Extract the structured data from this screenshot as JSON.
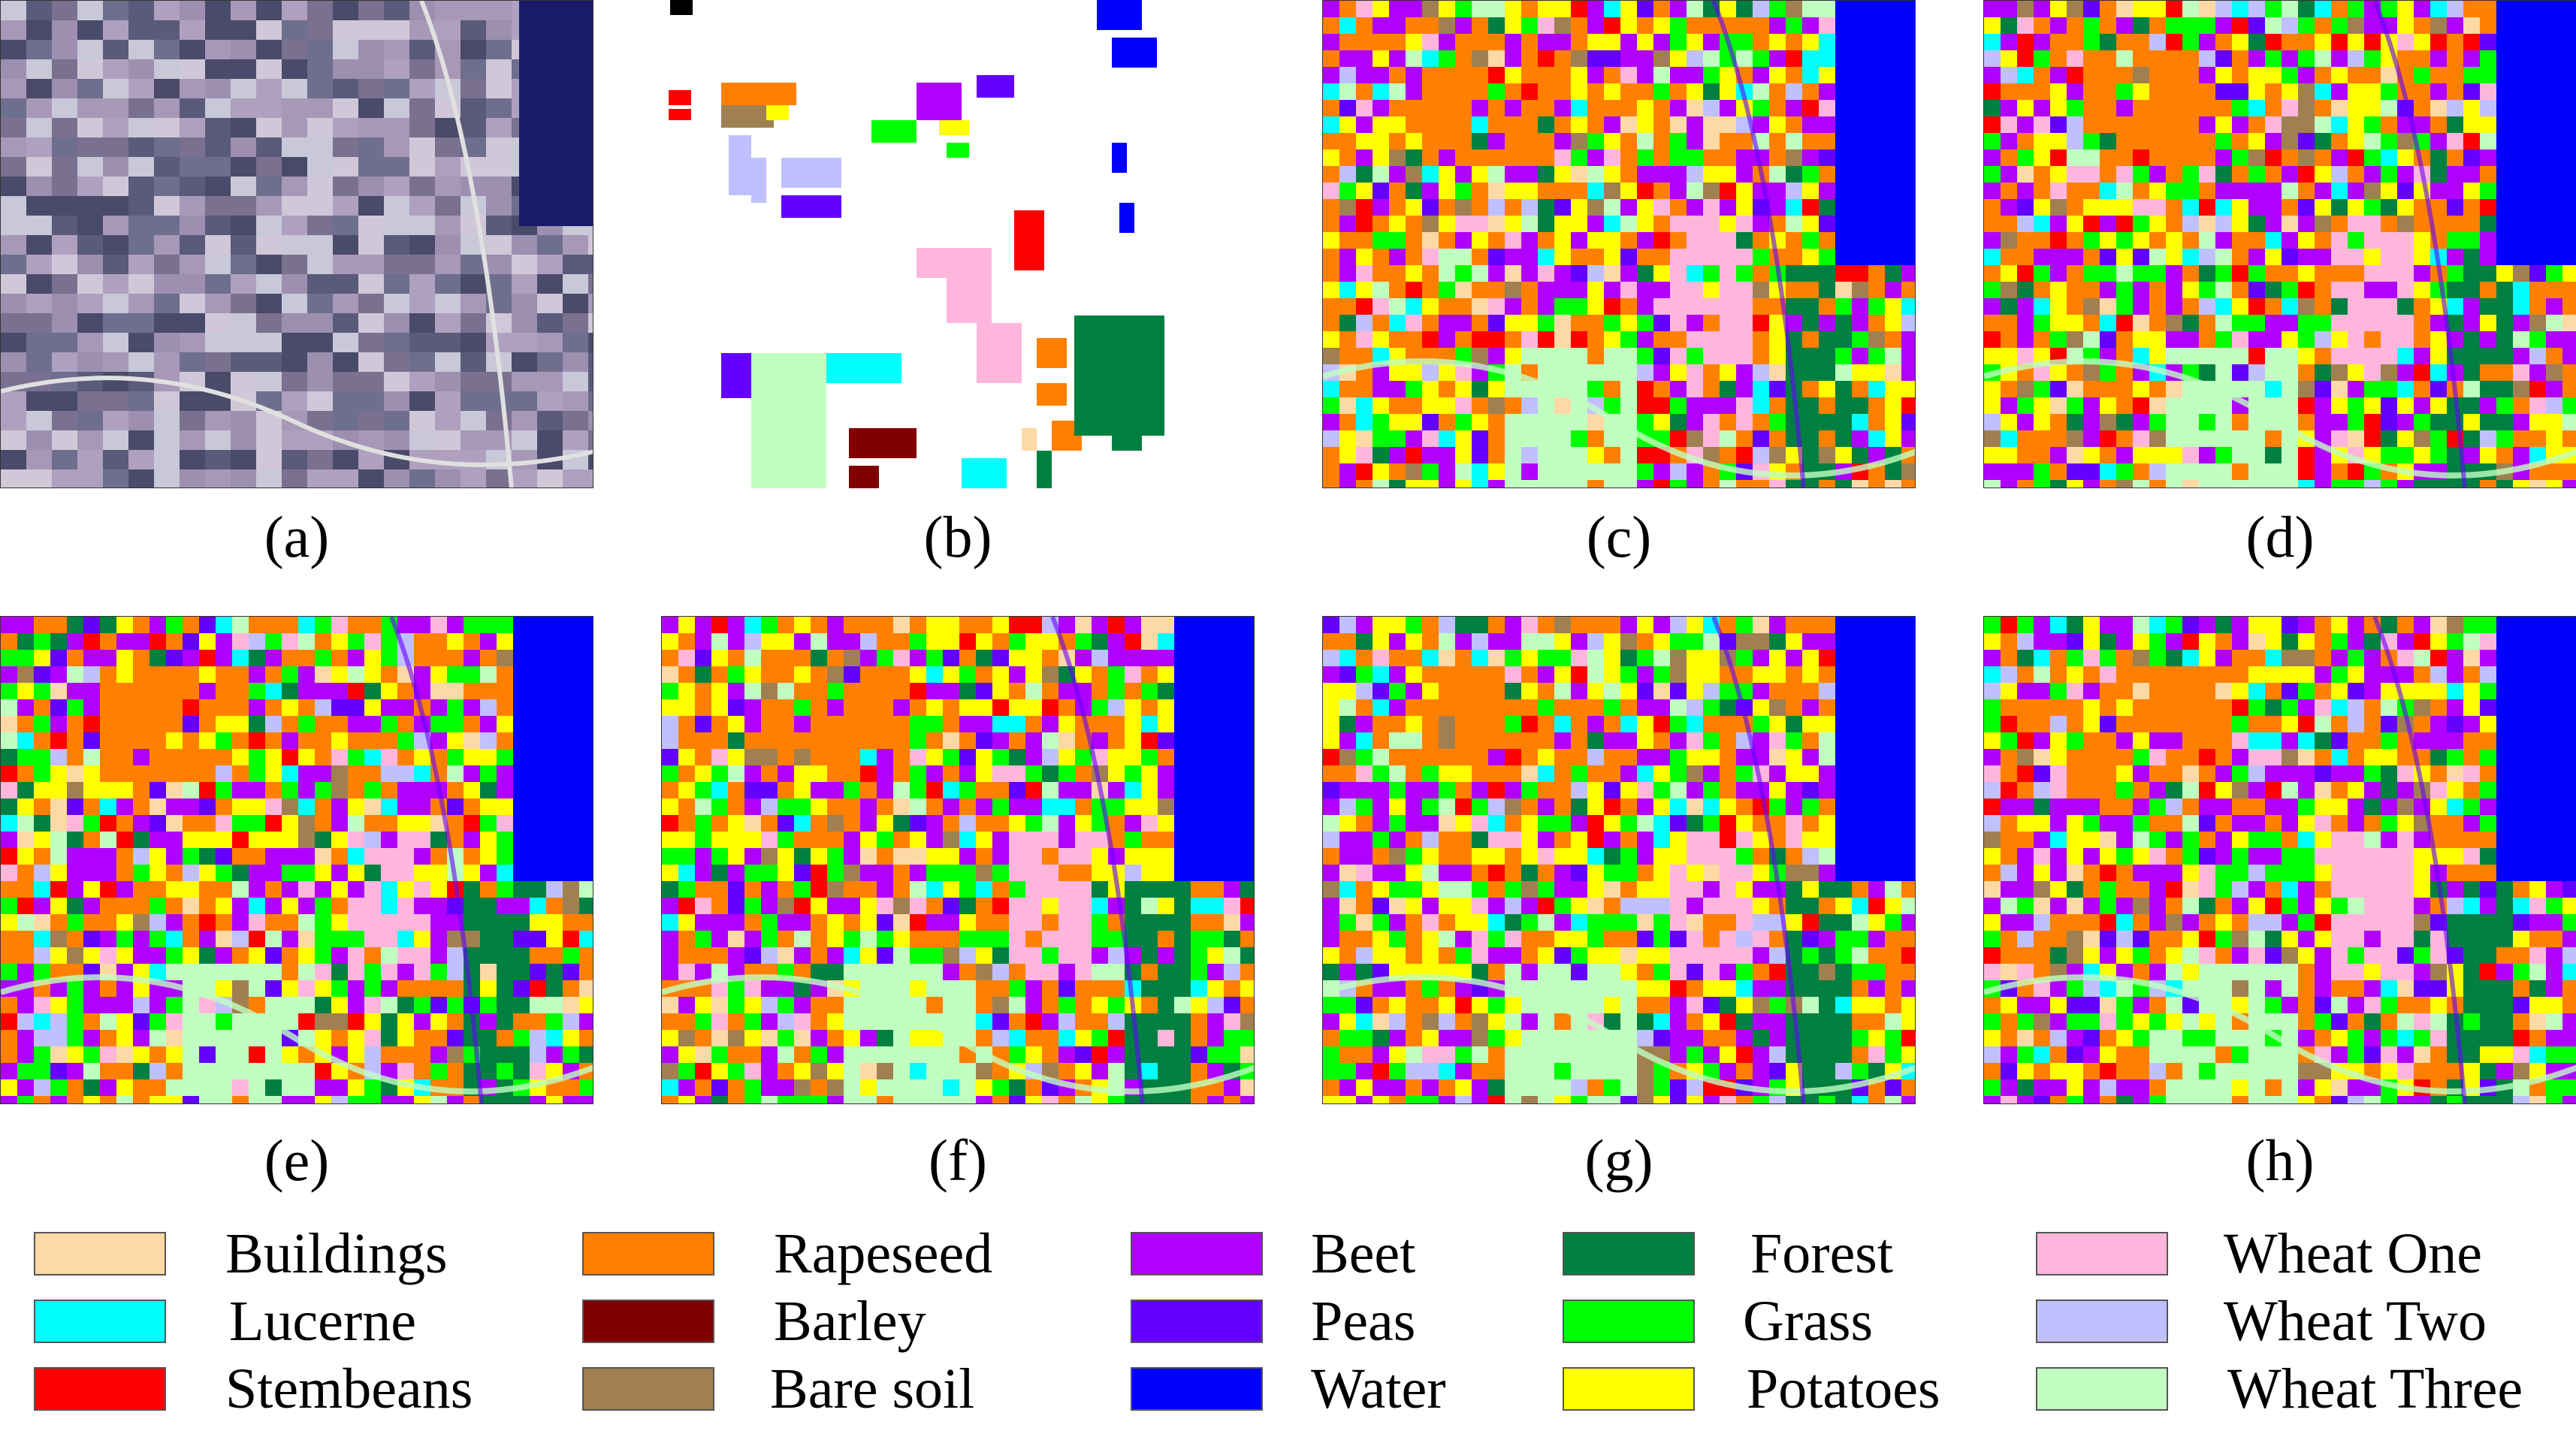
{
  "captions": [
    "(a)",
    "(b)",
    "(c)",
    "(d)",
    "(e)",
    "(f)",
    "(g)",
    "(h)"
  ],
  "legend": [
    {
      "label": "Buildings",
      "color": "#FDD9A5"
    },
    {
      "label": "Rapeseed",
      "color": "#FF8000"
    },
    {
      "label": "Beet",
      "color": "#B000FF"
    },
    {
      "label": "Forest",
      "color": "#008040"
    },
    {
      "label": "Wheat One",
      "color": "#FFB6DC"
    },
    {
      "label": "Lucerne",
      "color": "#00FFFF"
    },
    {
      "label": "Barley",
      "color": "#800000"
    },
    {
      "label": "Peas",
      "color": "#6400FF"
    },
    {
      "label": "Grass",
      "color": "#00FF00"
    },
    {
      "label": "Wheat Two",
      "color": "#C0C0FF"
    },
    {
      "label": "Stembeans",
      "color": "#FF0000"
    },
    {
      "label": "Bare soil",
      "color": "#A08050"
    },
    {
      "label": "Water",
      "color": "#0000FF"
    },
    {
      "label": "Potatoes",
      "color": "#FFFF00"
    },
    {
      "label": "Wheat Three",
      "color": "#C0FFC0"
    }
  ]
}
